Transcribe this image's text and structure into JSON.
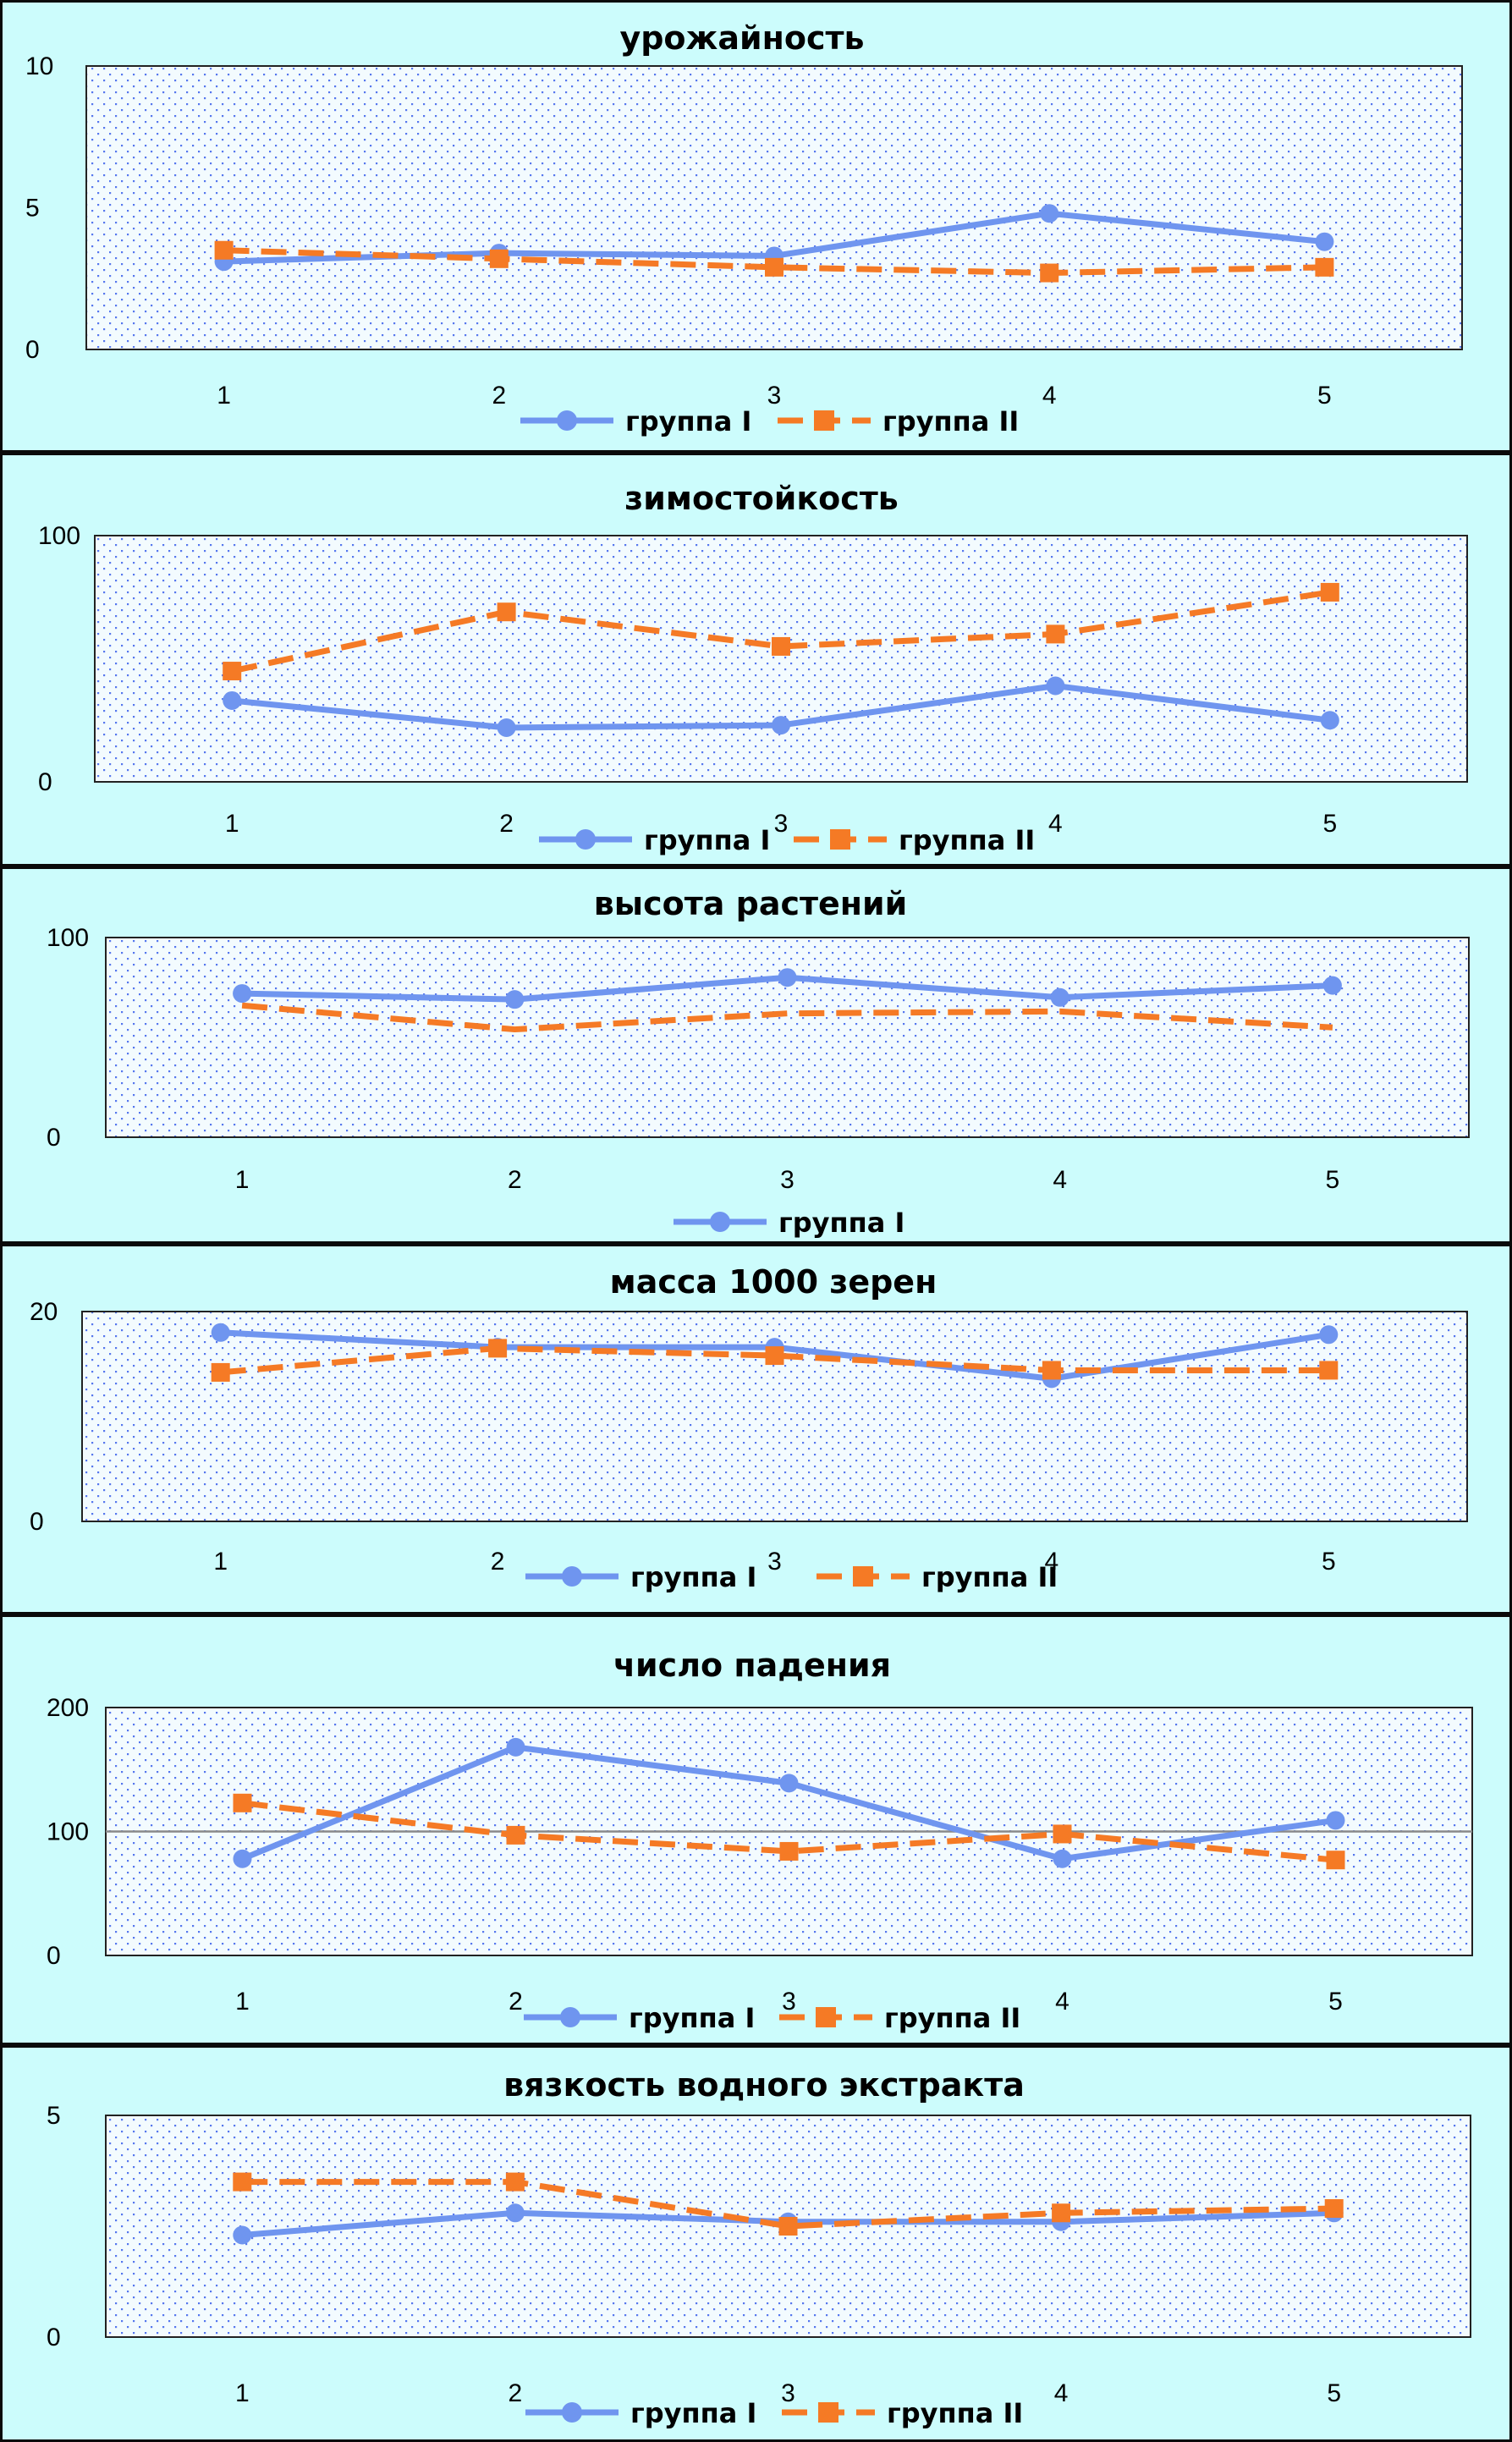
{
  "colors": {
    "panel_bg": "#ccfcfc",
    "plot_bg": "#f3fbfe",
    "dot": "#5577ee",
    "series_1": "#6f95ef",
    "series_2": "#f57a25",
    "border": "#0a0a0a"
  },
  "chart_data": [
    {
      "type": "line",
      "title": "урожайность",
      "categories": [
        "1",
        "2",
        "3",
        "4",
        "5"
      ],
      "ylim": [
        0,
        10
      ],
      "y_ticks": [
        "0",
        "5",
        "10"
      ],
      "grid": false,
      "legend_position": "bottom",
      "series": [
        {
          "name": "группа I",
          "values": [
            3.1,
            3.4,
            3.3,
            4.8,
            3.8
          ],
          "style": "solid",
          "marker": "circle"
        },
        {
          "name": "группа II",
          "values": [
            3.5,
            3.2,
            2.9,
            2.7,
            2.9
          ],
          "style": "dashed",
          "marker": "square"
        }
      ]
    },
    {
      "type": "line",
      "title": "зимостойкость",
      "categories": [
        "1",
        "2",
        "3",
        "4",
        "5"
      ],
      "ylim": [
        0,
        100
      ],
      "y_ticks": [
        "0",
        "100"
      ],
      "grid": false,
      "legend_position": "bottom",
      "series": [
        {
          "name": "группа I",
          "values": [
            33,
            22,
            23,
            39,
            25
          ],
          "style": "solid",
          "marker": "circle"
        },
        {
          "name": "группа II",
          "values": [
            45,
            69,
            55,
            60,
            77
          ],
          "style": "dashed",
          "marker": "square"
        }
      ]
    },
    {
      "type": "line",
      "title": "высота растений",
      "categories": [
        "1",
        "2",
        "3",
        "4",
        "5"
      ],
      "ylim": [
        0,
        100
      ],
      "y_ticks": [
        "0",
        "100"
      ],
      "grid": false,
      "legend_position": "bottom",
      "series": [
        {
          "name": "группа I",
          "values": [
            72,
            69,
            80,
            70,
            76
          ],
          "style": "solid",
          "marker": "circle"
        },
        {
          "values": [
            66,
            54,
            62,
            63,
            55
          ],
          "style": "dashed",
          "marker": "none"
        }
      ]
    },
    {
      "type": "line",
      "title": "масса 1000 зерен",
      "categories": [
        "1",
        "2",
        "3",
        "4",
        "5"
      ],
      "ylim": [
        0,
        20
      ],
      "y_ticks": [
        "0",
        "20"
      ],
      "grid": false,
      "legend_position": "bottom",
      "series": [
        {
          "name": "группа I",
          "values": [
            18.0,
            16.6,
            16.6,
            13.6,
            17.8
          ],
          "style": "solid",
          "marker": "circle"
        },
        {
          "name": "группа II",
          "values": [
            14.2,
            16.5,
            15.8,
            14.4,
            14.4
          ],
          "style": "dashed",
          "marker": "square"
        }
      ]
    },
    {
      "type": "line",
      "title": "число падения",
      "categories": [
        "1",
        "2",
        "3",
        "4",
        "5"
      ],
      "ylim": [
        0,
        200
      ],
      "y_ticks": [
        "0",
        "100",
        "200"
      ],
      "grid": true,
      "legend_position": "bottom",
      "series": [
        {
          "name": "группа I",
          "values": [
            78,
            168,
            139,
            78,
            109
          ],
          "style": "solid",
          "marker": "circle"
        },
        {
          "name": "группа II",
          "values": [
            123,
            97,
            84,
            98,
            77
          ],
          "style": "dashed",
          "marker": "square"
        }
      ]
    },
    {
      "type": "line",
      "title": "вязкость водного экстракта",
      "categories": [
        "1",
        "2",
        "3",
        "4",
        "5"
      ],
      "ylim": [
        0,
        5
      ],
      "y_ticks": [
        "0",
        "5"
      ],
      "grid": false,
      "legend_position": "bottom",
      "series": [
        {
          "name": "группа I",
          "values": [
            2.3,
            2.8,
            2.6,
            2.6,
            2.8
          ],
          "style": "solid",
          "marker": "circle"
        },
        {
          "name": "группа II",
          "values": [
            3.5,
            3.5,
            2.5,
            2.8,
            2.9
          ],
          "style": "dashed",
          "marker": "square"
        }
      ]
    }
  ]
}
